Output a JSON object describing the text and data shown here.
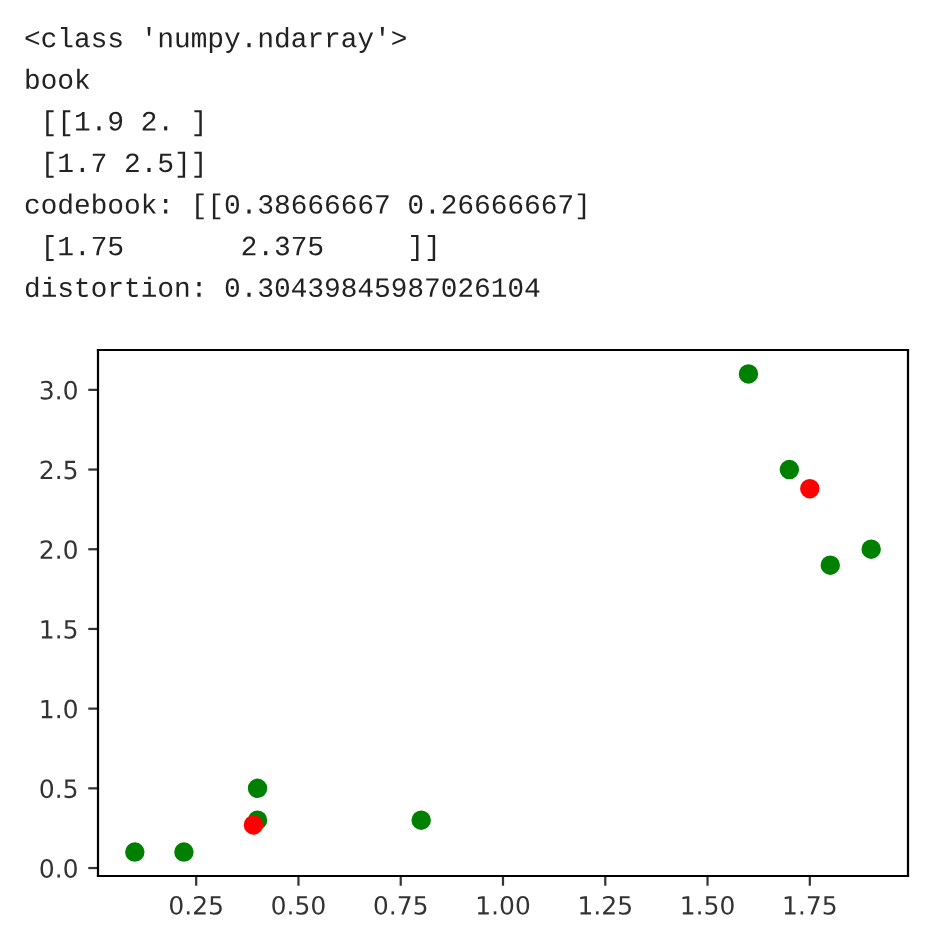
{
  "chart_data": {
    "type": "scatter",
    "annotations": [
      "<class 'numpy.ndarray'>",
      "book",
      " [[1.9 2. ]",
      " [1.7 2.5]]",
      "codebook: [[0.38666667 0.26666667]",
      " [1.75       2.375     ]]",
      "distortion: 0.30439845987026104"
    ],
    "series": [
      {
        "color": "#008000",
        "x": [
          0.1,
          0.22,
          0.4,
          0.4,
          0.8,
          1.6,
          1.7,
          1.8,
          1.9
        ],
        "values": [
          0.1,
          0.1,
          0.3,
          0.5,
          0.3,
          3.1,
          2.5,
          1.9,
          2.0
        ]
      },
      {
        "color": "#ff0000",
        "x": [
          0.39,
          1.75
        ],
        "values": [
          0.27,
          2.38
        ]
      }
    ],
    "xlim": [
      0.01,
      1.99
    ],
    "ylim": [
      -0.05,
      3.25
    ],
    "xticks": [
      {
        "value": 0.25,
        "label": "0.25"
      },
      {
        "value": 0.5,
        "label": "0.50"
      },
      {
        "value": 0.75,
        "label": "0.75"
      },
      {
        "value": 1.0,
        "label": "1.00"
      },
      {
        "value": 1.25,
        "label": "1.25"
      },
      {
        "value": 1.5,
        "label": "1.50"
      },
      {
        "value": 1.75,
        "label": "1.75"
      }
    ],
    "yticks": [
      {
        "value": 0,
        "label": "0.0"
      },
      {
        "value": 0.5,
        "label": "0.5"
      },
      {
        "value": 1.0,
        "label": "1.0"
      },
      {
        "value": 1.5,
        "label": "1.5"
      },
      {
        "value": 2.0,
        "label": "2.0"
      },
      {
        "value": 2.5,
        "label": "2.5"
      },
      {
        "value": 3.0,
        "label": "3.0"
      }
    ],
    "marker": "circle",
    "grid": false,
    "legend": false
  }
}
